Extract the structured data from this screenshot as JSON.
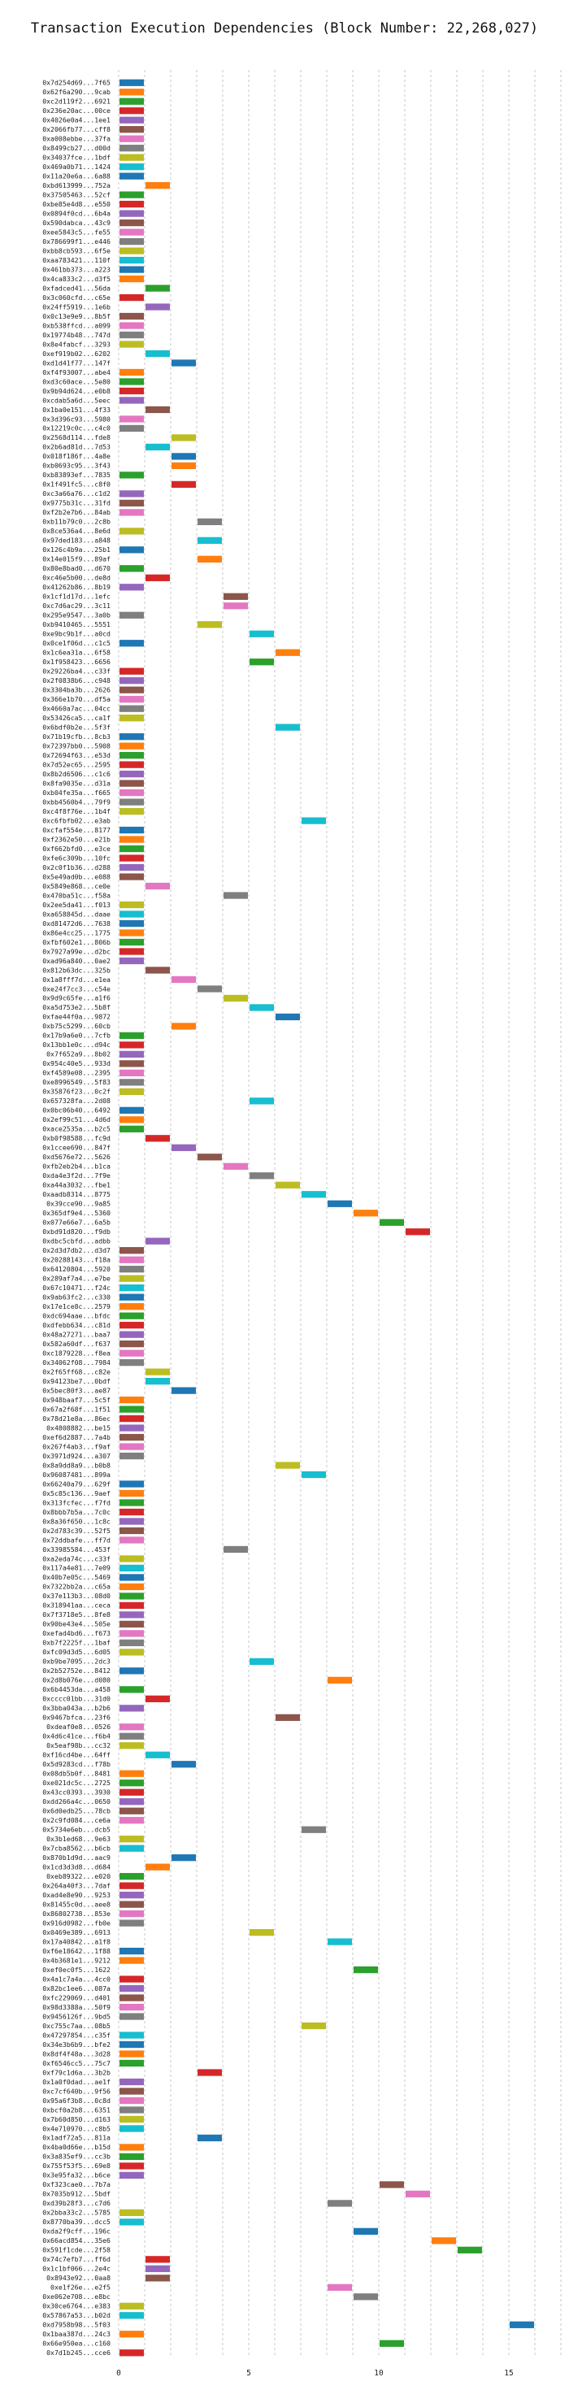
{
  "chart_data": {
    "type": "bar",
    "orientation": "horizontal-gantt",
    "title": "Transaction Execution Dependencies (Block Number: 22,268,027)",
    "xlabel": "",
    "ylabel": "",
    "xlim": [
      0,
      17
    ],
    "xticks": [
      0,
      5,
      10,
      15
    ],
    "grid": true,
    "grid_step": 1,
    "bar_width": 1,
    "colors": [
      "#1f77b4",
      "#ff7f0e",
      "#2ca02c",
      "#d62728",
      "#9467bd",
      "#8c564b",
      "#e377c2",
      "#7f7f7f",
      "#bcbd22",
      "#17becf"
    ],
    "transactions": [
      {
        "label": "0x7d254d69...7f65",
        "start": 0
      },
      {
        "label": "0x62f6a290...9cab",
        "start": 0
      },
      {
        "label": "0xc2d119f2...6921",
        "start": 0
      },
      {
        "label": "0x236e20ac...00ce",
        "start": 0
      },
      {
        "label": "0x4026e0a4...1ee1",
        "start": 0
      },
      {
        "label": "0x2066fb77...cff8",
        "start": 0
      },
      {
        "label": "0xa008ebbe...37fa",
        "start": 0
      },
      {
        "label": "0x8499cb27...d00d",
        "start": 0
      },
      {
        "label": "0x34037fce...1bdf",
        "start": 0
      },
      {
        "label": "0x469a0b71...1424",
        "start": 0
      },
      {
        "label": "0x11a20e6a...6a88",
        "start": 0
      },
      {
        "label": "0xbd613999...752a",
        "start": 1
      },
      {
        "label": "0x37505463...52cf",
        "start": 0
      },
      {
        "label": "0xbe85e4d8...e550",
        "start": 0
      },
      {
        "label": "0x0894f0cd...6b4a",
        "start": 0
      },
      {
        "label": "0x590dabca...43c9",
        "start": 0
      },
      {
        "label": "0xee5843c5...fe55",
        "start": 0
      },
      {
        "label": "0x786699f1...e446",
        "start": 0
      },
      {
        "label": "0xbb8cb593...6f5e",
        "start": 0
      },
      {
        "label": "0xaa783421...110f",
        "start": 0
      },
      {
        "label": "0x461bb373...a223",
        "start": 0
      },
      {
        "label": "0x4ca833c2...d3f5",
        "start": 0
      },
      {
        "label": "0xfadced41...56da",
        "start": 1
      },
      {
        "label": "0x3c060cfd...c65e",
        "start": 0
      },
      {
        "label": "0x24ff5919...1e6b",
        "start": 1
      },
      {
        "label": "0x0c13e9e9...8b5f",
        "start": 0
      },
      {
        "label": "0xb538ffcd...a099",
        "start": 0
      },
      {
        "label": "0x19774b48...747d",
        "start": 0
      },
      {
        "label": "0x8e4fabcf...3293",
        "start": 0
      },
      {
        "label": "0xef919b02...6202",
        "start": 1
      },
      {
        "label": "0xd1d41f77...147f",
        "start": 2
      },
      {
        "label": "0xf4f93007...abe4",
        "start": 0
      },
      {
        "label": "0xd3c60ace...5e80",
        "start": 0
      },
      {
        "label": "0x9b94d624...e0b8",
        "start": 0
      },
      {
        "label": "0xcdab5a6d...5eec",
        "start": 0
      },
      {
        "label": "0x1ba0e151...4f33",
        "start": 1
      },
      {
        "label": "0x3d396c93...5980",
        "start": 0
      },
      {
        "label": "0x12219c0c...c4c0",
        "start": 0
      },
      {
        "label": "0x2568d114...fde8",
        "start": 2
      },
      {
        "label": "0x2b6ad81d...7d53",
        "start": 1
      },
      {
        "label": "0x018f186f...4a8e",
        "start": 2
      },
      {
        "label": "0xb0693c95...3f43",
        "start": 2
      },
      {
        "label": "0xb83893ef...7835",
        "start": 0
      },
      {
        "label": "0x1f491fc5...c8f0",
        "start": 2
      },
      {
        "label": "0xc3a66a76...c1d2",
        "start": 0
      },
      {
        "label": "0x9775b31c...31fd",
        "start": 0
      },
      {
        "label": "0xf2b2e7b6...84ab",
        "start": 0
      },
      {
        "label": "0xb11b79c0...2c8b",
        "start": 3
      },
      {
        "label": "0x8ce536a4...8e6d",
        "start": 0
      },
      {
        "label": "0x97ded183...a848",
        "start": 3
      },
      {
        "label": "0x126c4b9a...25b1",
        "start": 0
      },
      {
        "label": "0x14e015f9...89af",
        "start": 3
      },
      {
        "label": "0x80e8bad0...d670",
        "start": 0
      },
      {
        "label": "0xc46e5b00...de8d",
        "start": 1
      },
      {
        "label": "0x41262b86...8b19",
        "start": 0
      },
      {
        "label": "0x1cf1d17d...1efc",
        "start": 4
      },
      {
        "label": "0xc7d6ac29...3c11",
        "start": 4
      },
      {
        "label": "0x295e9547...3a0b",
        "start": 0
      },
      {
        "label": "0xb9410465...5551",
        "start": 3
      },
      {
        "label": "0xe9bc9b1f...a0cd",
        "start": 5
      },
      {
        "label": "0x0ce1f06d...c1c5",
        "start": 0
      },
      {
        "label": "0x1c6ea31a...6f58",
        "start": 6
      },
      {
        "label": "0x1f958423...6656",
        "start": 5
      },
      {
        "label": "0x29226ba4...c33f",
        "start": 0
      },
      {
        "label": "0x2f0838b6...c948",
        "start": 0
      },
      {
        "label": "0x3304ba3b...2626",
        "start": 0
      },
      {
        "label": "0x366e1b70...df5a",
        "start": 0
      },
      {
        "label": "0x4660a7ac...04cc",
        "start": 0
      },
      {
        "label": "0x53426ca5...ca1f",
        "start": 0
      },
      {
        "label": "0x6bdf0b2e...5f3f",
        "start": 6
      },
      {
        "label": "0x71b19cfb...8cb3",
        "start": 0
      },
      {
        "label": "0x72397bb0...5908",
        "start": 0
      },
      {
        "label": "0x72694f63...e53d",
        "start": 0
      },
      {
        "label": "0x7d52ec65...2595",
        "start": 0
      },
      {
        "label": "0x8b2d6506...c1c6",
        "start": 0
      },
      {
        "label": "0x8fa9035e...d31a",
        "start": 0
      },
      {
        "label": "0xb04fe35a...f665",
        "start": 0
      },
      {
        "label": "0xbb4560b4...79f9",
        "start": 0
      },
      {
        "label": "0xc4f8f76e...1b4f",
        "start": 0
      },
      {
        "label": "0xc6fbfb02...e3ab",
        "start": 7
      },
      {
        "label": "0xcfaf554e...8177",
        "start": 0
      },
      {
        "label": "0xf2362e50...e21b",
        "start": 0
      },
      {
        "label": "0xf662bfd0...e3ce",
        "start": 0
      },
      {
        "label": "0xfe6c309b...10fc",
        "start": 0
      },
      {
        "label": "0x2c0f1b36...d288",
        "start": 0
      },
      {
        "label": "0x5e49ad0b...e088",
        "start": 0
      },
      {
        "label": "0x5849e868...ce0e",
        "start": 1
      },
      {
        "label": "0x470ba51c...f58a",
        "start": 4
      },
      {
        "label": "0x2ee5da41...f013",
        "start": 0
      },
      {
        "label": "0xa658845d...daae",
        "start": 0
      },
      {
        "label": "0xd81472d6...7638",
        "start": 0
      },
      {
        "label": "0x86e4cc25...1775",
        "start": 0
      },
      {
        "label": "0xfbf602e1...806b",
        "start": 0
      },
      {
        "label": "0x7927a99e...d2bc",
        "start": 0
      },
      {
        "label": "0xad96a840...0ae2",
        "start": 0
      },
      {
        "label": "0x812b63dc...325b",
        "start": 1
      },
      {
        "label": "0x1a8fff7d...e1ea",
        "start": 2
      },
      {
        "label": "0xe24f7cc3...c54e",
        "start": 3
      },
      {
        "label": "0x9d9c65fe...a1f6",
        "start": 4
      },
      {
        "label": "0xa5d753e2...5b8f",
        "start": 5
      },
      {
        "label": "0xfae44f0a...9872",
        "start": 6
      },
      {
        "label": "0xb75c5299...60cb",
        "start": 2
      },
      {
        "label": "0x17b9a6e0...7cfb",
        "start": 0
      },
      {
        "label": "0x13bb1e0c...d94c",
        "start": 0
      },
      {
        "label": "0x7f652a9...8b02",
        "start": 0
      },
      {
        "label": "0x954c40e5...933d",
        "start": 0
      },
      {
        "label": "0xf4589e08...2395",
        "start": 0
      },
      {
        "label": "0xe8996549...5f83",
        "start": 0
      },
      {
        "label": "0x35876f23...0c2f",
        "start": 0
      },
      {
        "label": "0x657328fa...2d08",
        "start": 5
      },
      {
        "label": "0x0bc06b40...6492",
        "start": 0
      },
      {
        "label": "0x2ef99c51...4d6d",
        "start": 0
      },
      {
        "label": "0xace2535a...b2c5",
        "start": 0
      },
      {
        "label": "0xb0f98588...fc9d",
        "start": 1
      },
      {
        "label": "0x1ccee690...847f",
        "start": 2
      },
      {
        "label": "0xd5676e72...5626",
        "start": 3
      },
      {
        "label": "0xfb2eb2b4...b1ca",
        "start": 4
      },
      {
        "label": "0xda4e3f2d...7f9e",
        "start": 5
      },
      {
        "label": "0xa44a3032...fbe1",
        "start": 6
      },
      {
        "label": "0xaadb8314...8775",
        "start": 7
      },
      {
        "label": "0x39cce90...9a85",
        "start": 8
      },
      {
        "label": "0x365df9e4...5360",
        "start": 9
      },
      {
        "label": "0x077e66e7...6a5b",
        "start": 10
      },
      {
        "label": "0xbd91d820...f9db",
        "start": 11
      },
      {
        "label": "0xdbc5cbfd...adbb",
        "start": 1
      },
      {
        "label": "0x2d3d7db2...d3d7",
        "start": 0
      },
      {
        "label": "0x20288143...f18a",
        "start": 0
      },
      {
        "label": "0x64120804...5920",
        "start": 0
      },
      {
        "label": "0x289af7a4...e7be",
        "start": 0
      },
      {
        "label": "0x67c10471...f24c",
        "start": 0
      },
      {
        "label": "0x9ab63fc2...c330",
        "start": 0
      },
      {
        "label": "0x17e1ce8c...2579",
        "start": 0
      },
      {
        "label": "0xdc694aae...bfdc",
        "start": 0
      },
      {
        "label": "0xdfebb634...c81d",
        "start": 0
      },
      {
        "label": "0x48a27271...baa7",
        "start": 0
      },
      {
        "label": "0x582a60df...f637",
        "start": 0
      },
      {
        "label": "0xc1879228...f8ea",
        "start": 0
      },
      {
        "label": "0x34062f08...7984",
        "start": 0
      },
      {
        "label": "0x2f65ff68...c82e",
        "start": 1
      },
      {
        "label": "0x94123be7...0bdf",
        "start": 1
      },
      {
        "label": "0x5bec80f3...ae87",
        "start": 2
      },
      {
        "label": "0x948baaf7...5c5f",
        "start": 0
      },
      {
        "label": "0x67a2f68f...1f51",
        "start": 0
      },
      {
        "label": "0x78d21e8a...86ec",
        "start": 0
      },
      {
        "label": "0x4808882...be15",
        "start": 0
      },
      {
        "label": "0xef6d2887...7a4b",
        "start": 0
      },
      {
        "label": "0x267f4ab3...f9af",
        "start": 0
      },
      {
        "label": "0x3971d924...a307",
        "start": 0
      },
      {
        "label": "0x8a9dd8a9...b0b8",
        "start": 6
      },
      {
        "label": "0x96087481...899a",
        "start": 7
      },
      {
        "label": "0x66240a79...629f",
        "start": 0
      },
      {
        "label": "0x5c85c136...9aef",
        "start": 0
      },
      {
        "label": "0x313fcfec...f7fd",
        "start": 0
      },
      {
        "label": "0x8bbb7b5a...7c0c",
        "start": 0
      },
      {
        "label": "0x8a36f650...1c8c",
        "start": 0
      },
      {
        "label": "0x2d783c39...52f5",
        "start": 0
      },
      {
        "label": "0x72ddbafe...ff7d",
        "start": 0
      },
      {
        "label": "0x33985584...453f",
        "start": 4
      },
      {
        "label": "0xa2eda74c...c33f",
        "start": 0
      },
      {
        "label": "0x117a4e81...7e09",
        "start": 0
      },
      {
        "label": "0x40b7e05c...5469",
        "start": 0
      },
      {
        "label": "0x7322bb2a...c65a",
        "start": 0
      },
      {
        "label": "0x37e113b3...08d0",
        "start": 0
      },
      {
        "label": "0x318941aa...ceca",
        "start": 0
      },
      {
        "label": "0x7f3718e5...8fe8",
        "start": 0
      },
      {
        "label": "0x90be43e4...505e",
        "start": 0
      },
      {
        "label": "0xefad4bd6...f673",
        "start": 0
      },
      {
        "label": "0xb7f2225f...1baf",
        "start": 0
      },
      {
        "label": "0xfc09d3d5...6d05",
        "start": 0
      },
      {
        "label": "0xb9be7095...2dc3",
        "start": 5
      },
      {
        "label": "0x2b52752e...8412",
        "start": 0
      },
      {
        "label": "0x2d8b076e...d080",
        "start": 8
      },
      {
        "label": "0x6b4453da...a458",
        "start": 0
      },
      {
        "label": "0xcccc01bb...31d0",
        "start": 1
      },
      {
        "label": "0x3bba043a...b2b6",
        "start": 0
      },
      {
        "label": "0x9467bfca...23f6",
        "start": 6
      },
      {
        "label": "0xdeaf0e8...0526",
        "start": 0
      },
      {
        "label": "0x4d6c41ce...f6b4",
        "start": 0
      },
      {
        "label": "0x5eaf98b...cc32",
        "start": 0
      },
      {
        "label": "0xf16cd4be...64ff",
        "start": 1
      },
      {
        "label": "0x5d9283cd...f78b",
        "start": 2
      },
      {
        "label": "0x08db5b0f...8481",
        "start": 0
      },
      {
        "label": "0xe021dc5c...2725",
        "start": 0
      },
      {
        "label": "0x43cc0393...3930",
        "start": 0
      },
      {
        "label": "0xdd266a4c...0650",
        "start": 0
      },
      {
        "label": "0x6d0edb25...78cb",
        "start": 0
      },
      {
        "label": "0x2c9fd084...ce6a",
        "start": 0
      },
      {
        "label": "0x5734e6eb...dcb5",
        "start": 7
      },
      {
        "label": "0x3b1ed68...9e63",
        "start": 0
      },
      {
        "label": "0x7cba8562...b6cb",
        "start": 0
      },
      {
        "label": "0x870b1d9d...aac9",
        "start": 2
      },
      {
        "label": "0x1cd3d3d8...d684",
        "start": 1
      },
      {
        "label": "0xeb89322...e020",
        "start": 0
      },
      {
        "label": "0x264a40f3...7daf",
        "start": 0
      },
      {
        "label": "0xad4e8e90...9253",
        "start": 0
      },
      {
        "label": "0x81455c0d...aee8",
        "start": 0
      },
      {
        "label": "0x86802738...853e",
        "start": 0
      },
      {
        "label": "0x916d0982...fb0e",
        "start": 0
      },
      {
        "label": "0x0469e389...6913",
        "start": 5
      },
      {
        "label": "0x17a40842...a1f8",
        "start": 8
      },
      {
        "label": "0xf6e18642...1f88",
        "start": 0
      },
      {
        "label": "0x4b3681e1...9212",
        "start": 0
      },
      {
        "label": "0xef0ec0f5...1622",
        "start": 9
      },
      {
        "label": "0x4a1c7a4a...4cc0",
        "start": 0
      },
      {
        "label": "0x82bc1ee6...087a",
        "start": 0
      },
      {
        "label": "0xfc229069...d401",
        "start": 0
      },
      {
        "label": "0x98d3388a...50f9",
        "start": 0
      },
      {
        "label": "0x9456126f...9bd5",
        "start": 0
      },
      {
        "label": "0xc755c7aa...08b5",
        "start": 7
      },
      {
        "label": "0x47297854...c35f",
        "start": 0
      },
      {
        "label": "0x34e3b6b9...bfe2",
        "start": 0
      },
      {
        "label": "0x8df4f48a...3d28",
        "start": 0
      },
      {
        "label": "0xf6546cc5...75c7",
        "start": 0
      },
      {
        "label": "0xf79c1d6a...3b2b",
        "start": 3
      },
      {
        "label": "0x1a0f0dad...ae1f",
        "start": 0
      },
      {
        "label": "0xc7cf640b...9f56",
        "start": 0
      },
      {
        "label": "0x95a6f3b8...0c8d",
        "start": 0
      },
      {
        "label": "0xbcf0a2b8...6351",
        "start": 0
      },
      {
        "label": "0x7b60d850...d163",
        "start": 0
      },
      {
        "label": "0x4e710970...c8b5",
        "start": 0
      },
      {
        "label": "0x1adf72a5...811a",
        "start": 3
      },
      {
        "label": "0x4ba0d66e...b15d",
        "start": 0
      },
      {
        "label": "0x3a835ef9...cc3b",
        "start": 0
      },
      {
        "label": "0x755f53f5...69e8",
        "start": 0
      },
      {
        "label": "0x3e95fa32...b6ce",
        "start": 0
      },
      {
        "label": "0xf323cae0...7b7a",
        "start": 10
      },
      {
        "label": "0x7035b912...5bdf",
        "start": 11
      },
      {
        "label": "0xd39b28f3...c7d6",
        "start": 8
      },
      {
        "label": "0x2bba33c2...5785",
        "start": 0
      },
      {
        "label": "0x8770ba39...dcc5",
        "start": 0
      },
      {
        "label": "0xda2f9cff...196c",
        "start": 9
      },
      {
        "label": "0x66acd854...35e6",
        "start": 12
      },
      {
        "label": "0x591f1cde...2f58",
        "start": 13
      },
      {
        "label": "0x74c7efb7...ff6d",
        "start": 1
      },
      {
        "label": "0x1c1bf066...2e4c",
        "start": 1
      },
      {
        "label": "0x8943e92...0aa8",
        "start": 1
      },
      {
        "label": "0xe1f26e...e2f5",
        "start": 8
      },
      {
        "label": "0xe062e708...e8bc",
        "start": 9
      },
      {
        "label": "0x30ce6764...e383",
        "start": 0
      },
      {
        "label": "0x57867a53...b02d",
        "start": 0
      },
      {
        "label": "0xd7958b98...5f03",
        "start": 15
      },
      {
        "label": "0x1baa387d...24c3",
        "start": 0
      },
      {
        "label": "0x66e950ea...c160",
        "start": 10
      },
      {
        "label": "0x7d1b245...cce6",
        "start": 0
      }
    ]
  }
}
